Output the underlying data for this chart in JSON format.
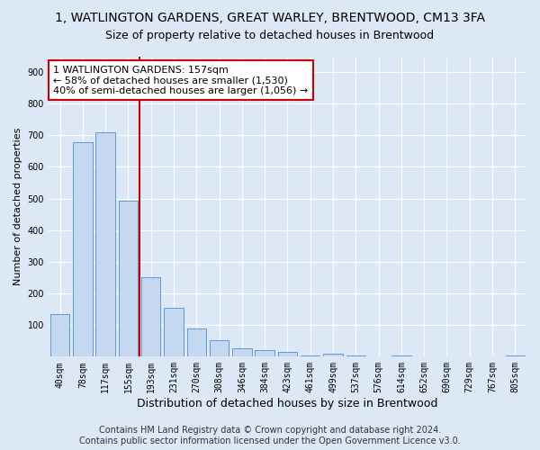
{
  "title": "1, WATLINGTON GARDENS, GREAT WARLEY, BRENTWOOD, CM13 3FA",
  "subtitle": "Size of property relative to detached houses in Brentwood",
  "xlabel": "Distribution of detached houses by size in Brentwood",
  "ylabel": "Number of detached properties",
  "bar_labels": [
    "40sqm",
    "78sqm",
    "117sqm",
    "155sqm",
    "193sqm",
    "231sqm",
    "270sqm",
    "308sqm",
    "346sqm",
    "384sqm",
    "423sqm",
    "461sqm",
    "499sqm",
    "537sqm",
    "576sqm",
    "614sqm",
    "652sqm",
    "690sqm",
    "729sqm",
    "767sqm",
    "805sqm"
  ],
  "bar_values": [
    135,
    678,
    710,
    493,
    252,
    155,
    88,
    52,
    26,
    22,
    15,
    5,
    9,
    5,
    0,
    5,
    0,
    0,
    0,
    0,
    3
  ],
  "bar_color": "#c5d8f0",
  "bar_edge_color": "#5b9bd5",
  "property_line_x": 3.5,
  "property_line_color": "#cc0000",
  "annotation_text": "1 WATLINGTON GARDENS: 157sqm\n← 58% of detached houses are smaller (1,530)\n40% of semi-detached houses are larger (1,056) →",
  "annotation_box_color": "#ffffff",
  "annotation_box_edge": "#cc0000",
  "ylim": [
    0,
    950
  ],
  "yticks": [
    100,
    200,
    300,
    400,
    500,
    600,
    700,
    800,
    900
  ],
  "footer": "Contains HM Land Registry data © Crown copyright and database right 2024.\nContains public sector information licensed under the Open Government Licence v3.0.",
  "bg_color": "#dce8f5",
  "grid_color": "#ffffff",
  "title_fontsize": 10,
  "subtitle_fontsize": 9,
  "xlabel_fontsize": 9,
  "ylabel_fontsize": 8,
  "tick_fontsize": 7,
  "footer_fontsize": 7
}
